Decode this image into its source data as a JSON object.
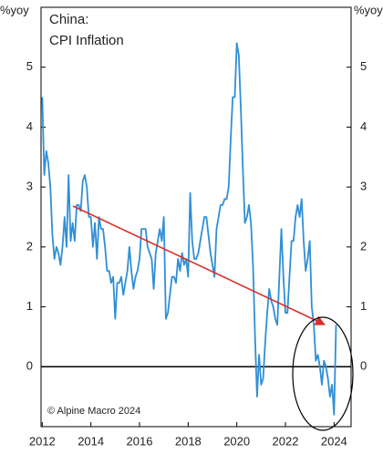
{
  "chart_data": {
    "type": "line",
    "title": "China:",
    "subtitle": "CPI Inflation",
    "ylabel": "%yoy",
    "y2label": "%yoy",
    "source": "© Alpine Macro 2024",
    "x": [
      2012,
      2012.083,
      2012.167,
      2012.25,
      2012.333,
      2012.417,
      2012.5,
      2012.583,
      2012.667,
      2012.75,
      2012.833,
      2012.917,
      2013,
      2013.083,
      2013.167,
      2013.25,
      2013.333,
      2013.417,
      2013.5,
      2013.583,
      2013.667,
      2013.75,
      2013.833,
      2013.917,
      2014,
      2014.083,
      2014.167,
      2014.25,
      2014.333,
      2014.417,
      2014.5,
      2014.583,
      2014.667,
      2014.75,
      2014.833,
      2014.917,
      2015,
      2015.083,
      2015.167,
      2015.25,
      2015.333,
      2015.417,
      2015.5,
      2015.583,
      2015.667,
      2015.75,
      2015.833,
      2015.917,
      2016,
      2016.083,
      2016.167,
      2016.25,
      2016.333,
      2016.417,
      2016.5,
      2016.583,
      2016.667,
      2016.75,
      2016.833,
      2016.917,
      2017,
      2017.083,
      2017.167,
      2017.25,
      2017.333,
      2017.417,
      2017.5,
      2017.583,
      2017.667,
      2017.75,
      2017.833,
      2017.917,
      2018,
      2018.083,
      2018.167,
      2018.25,
      2018.333,
      2018.417,
      2018.5,
      2018.583,
      2018.667,
      2018.75,
      2018.833,
      2018.917,
      2019,
      2019.083,
      2019.167,
      2019.25,
      2019.333,
      2019.417,
      2019.5,
      2019.583,
      2019.667,
      2019.75,
      2019.833,
      2019.917,
      2020,
      2020.083,
      2020.167,
      2020.25,
      2020.333,
      2020.417,
      2020.5,
      2020.583,
      2020.667,
      2020.75,
      2020.833,
      2020.917,
      2021,
      2021.083,
      2021.167,
      2021.25,
      2021.333,
      2021.417,
      2021.5,
      2021.583,
      2021.667,
      2021.75,
      2021.833,
      2021.917,
      2022,
      2022.083,
      2022.167,
      2022.25,
      2022.333,
      2022.417,
      2022.5,
      2022.583,
      2022.667,
      2022.75,
      2022.833,
      2022.917,
      2023,
      2023.083,
      2023.167,
      2023.25,
      2023.333,
      2023.417,
      2023.5,
      2023.583,
      2023.667,
      2023.75,
      2023.833,
      2023.917,
      2024,
      2024.083
    ],
    "series": [
      {
        "name": "CPI Inflation",
        "color": "#2f8fd6",
        "values": [
          4.5,
          3.2,
          3.6,
          3.4,
          3.0,
          2.2,
          1.8,
          2.0,
          1.9,
          1.7,
          2.0,
          2.5,
          2.0,
          3.2,
          2.1,
          2.4,
          2.1,
          2.7,
          2.7,
          2.6,
          3.1,
          3.2,
          3.0,
          2.5,
          2.5,
          2.0,
          2.4,
          1.8,
          2.5,
          2.3,
          2.3,
          2.0,
          1.6,
          1.6,
          1.4,
          1.5,
          0.8,
          1.4,
          1.4,
          1.5,
          1.2,
          1.4,
          1.6,
          2.0,
          1.6,
          1.3,
          1.5,
          1.6,
          1.8,
          2.3,
          2.3,
          2.3,
          2.0,
          1.9,
          1.8,
          1.3,
          1.9,
          2.1,
          2.3,
          2.1,
          2.5,
          0.8,
          0.9,
          1.2,
          1.5,
          1.5,
          1.4,
          1.8,
          1.6,
          1.9,
          1.7,
          1.8,
          1.5,
          2.9,
          2.1,
          1.8,
          1.8,
          1.9,
          2.1,
          2.3,
          2.5,
          2.5,
          2.2,
          1.9,
          1.7,
          1.5,
          2.3,
          2.5,
          2.7,
          2.7,
          2.8,
          2.8,
          3.0,
          3.8,
          4.5,
          4.5,
          5.4,
          5.2,
          4.3,
          3.3,
          2.4,
          2.5,
          2.7,
          2.4,
          1.7,
          0.5,
          -0.5,
          0.2,
          -0.3,
          -0.2,
          0.4,
          0.9,
          1.3,
          1.1,
          1.0,
          0.8,
          0.7,
          1.5,
          2.3,
          1.5,
          0.9,
          0.9,
          1.5,
          2.1,
          2.1,
          2.5,
          2.7,
          2.5,
          2.8,
          2.1,
          1.6,
          1.8,
          2.1,
          1.0,
          0.7,
          0.1,
          0.2,
          0.0,
          -0.3,
          0.1,
          0.0,
          -0.2,
          -0.5,
          -0.3,
          -0.8,
          0.7
        ]
      }
    ],
    "xlim": [
      2011.95,
      2024.7
    ],
    "xticks": [
      2012,
      2014,
      2016,
      2018,
      2020,
      2022,
      2024
    ],
    "ylim": [
      -1,
      6
    ],
    "yticks": [
      0,
      1,
      2,
      3,
      4,
      5
    ],
    "y2lim": [
      -1,
      6
    ],
    "y2ticks": [
      0,
      1,
      2,
      3,
      4,
      5
    ]
  }
}
